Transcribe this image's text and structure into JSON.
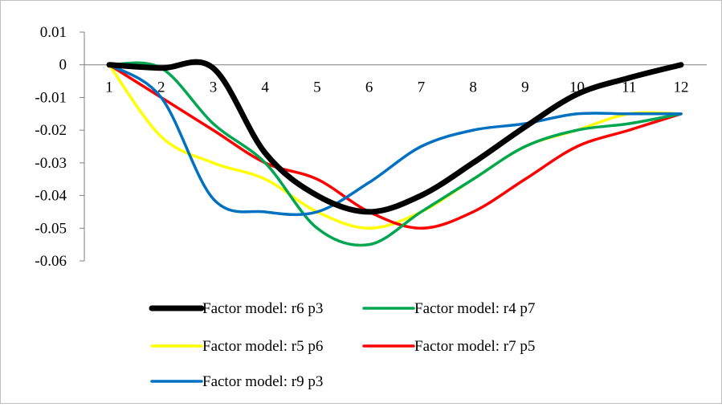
{
  "chart_data": {
    "type": "line",
    "title": "",
    "xlabel": "",
    "ylabel": "",
    "x": [
      1,
      2,
      3,
      4,
      5,
      6,
      7,
      8,
      9,
      10,
      11,
      12
    ],
    "xlim": [
      1,
      12
    ],
    "ylim": [
      -0.06,
      0.01
    ],
    "yticks": [
      0.01,
      0,
      -0.01,
      -0.02,
      -0.03,
      -0.04,
      -0.05,
      -0.06
    ],
    "ytick_labels": [
      "0.01",
      "0",
      "-0.01",
      "-0.02",
      "-0.03",
      "-0.04",
      "-0.05",
      "-0.06"
    ],
    "xtick_labels": [
      "1",
      "2",
      "3",
      "4",
      "5",
      "6",
      "7",
      "8",
      "9",
      "10",
      "11",
      "12"
    ],
    "grid": false,
    "legend_position": "bottom",
    "series": [
      {
        "name": "Factor model: r6 p3",
        "color": "#000000",
        "width": 7,
        "values": [
          0.0,
          -0.001,
          -0.001,
          -0.027,
          -0.04,
          -0.045,
          -0.04,
          -0.03,
          -0.019,
          -0.009,
          -0.004,
          0.0
        ]
      },
      {
        "name": "Factor model: r4 p7",
        "color": "#00a650",
        "width": 3.5,
        "values": [
          0.0,
          -0.001,
          -0.018,
          -0.03,
          -0.05,
          -0.055,
          -0.045,
          -0.035,
          -0.025,
          -0.02,
          -0.018,
          -0.015
        ]
      },
      {
        "name": "Factor model: r5 p6",
        "color": "#ffff00",
        "width": 3.5,
        "values": [
          0.0,
          -0.022,
          -0.03,
          -0.035,
          -0.045,
          -0.05,
          -0.045,
          -0.035,
          -0.025,
          -0.02,
          -0.015,
          -0.015
        ]
      },
      {
        "name": "Factor model: r7 p5",
        "color": "#ff0000",
        "width": 3.5,
        "values": [
          0.0,
          -0.01,
          -0.02,
          -0.03,
          -0.035,
          -0.045,
          -0.05,
          -0.045,
          -0.035,
          -0.025,
          -0.02,
          -0.015
        ]
      },
      {
        "name": "Factor model: r9 p3",
        "color": "#0070c0",
        "width": 3.5,
        "values": [
          0.0,
          -0.01,
          -0.041,
          -0.045,
          -0.045,
          -0.036,
          -0.025,
          -0.02,
          -0.018,
          -0.015,
          -0.015,
          -0.015
        ]
      }
    ]
  }
}
